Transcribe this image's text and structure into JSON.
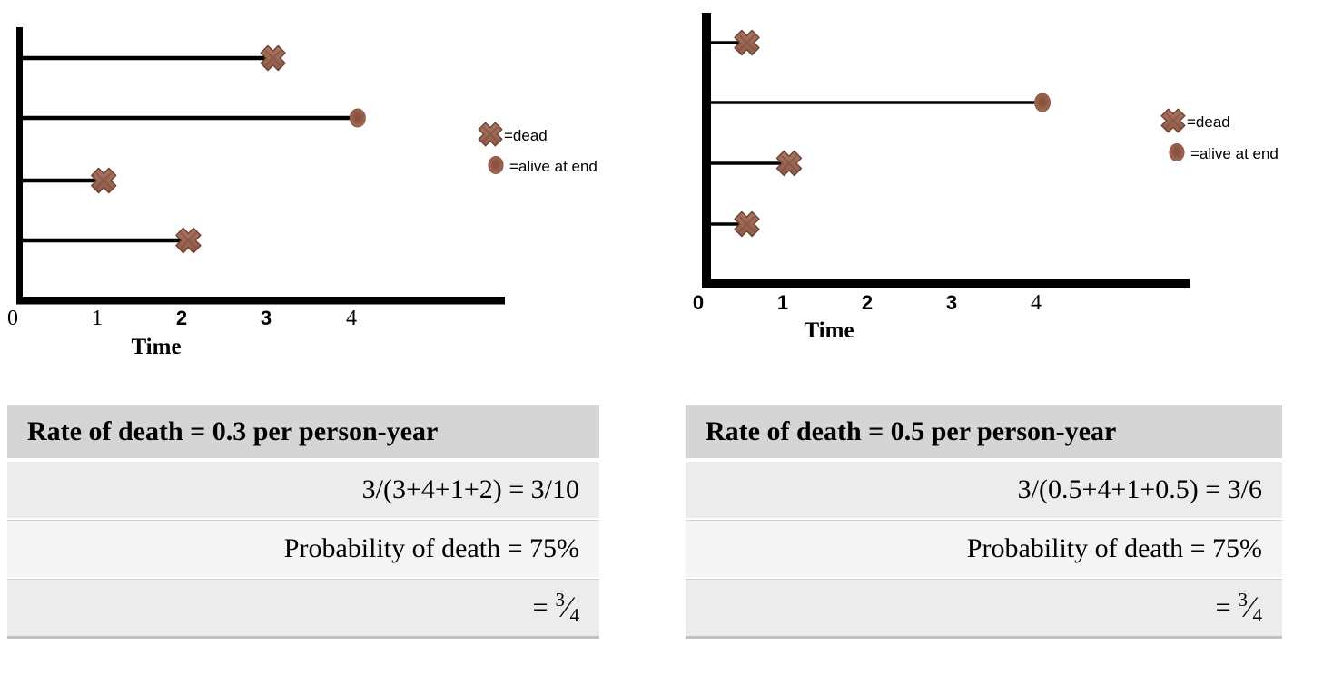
{
  "chart_data": [
    {
      "type": "scatter",
      "title": "",
      "xlabel": "Time",
      "ylabel": "",
      "x_ticks": [
        "0",
        "1",
        "2",
        "3",
        "4"
      ],
      "xlim": [
        0,
        5
      ],
      "grid": false,
      "subjects": [
        {
          "row": 1,
          "time": 3,
          "outcome": "dead"
        },
        {
          "row": 2,
          "time": 4,
          "outcome": "alive at end"
        },
        {
          "row": 3,
          "time": 1,
          "outcome": "dead"
        },
        {
          "row": 4,
          "time": 2,
          "outcome": "dead"
        }
      ],
      "legend": [
        {
          "marker": "cross",
          "label": "=dead"
        },
        {
          "marker": "circle",
          "label": "=alive at end"
        }
      ]
    },
    {
      "type": "scatter",
      "title": "",
      "xlabel": "Time",
      "ylabel": "",
      "x_ticks": [
        "0",
        "1",
        "2",
        "3",
        "4"
      ],
      "xlim": [
        0,
        5
      ],
      "grid": false,
      "subjects": [
        {
          "row": 1,
          "time": 0.5,
          "outcome": "dead"
        },
        {
          "row": 2,
          "time": 4,
          "outcome": "alive at end"
        },
        {
          "row": 3,
          "time": 1,
          "outcome": "dead"
        },
        {
          "row": 4,
          "time": 0.5,
          "outcome": "dead"
        }
      ],
      "legend": [
        {
          "marker": "cross",
          "label": "=dead"
        },
        {
          "marker": "circle",
          "label": "=alive at end"
        }
      ]
    }
  ],
  "tables": [
    {
      "header": "Rate of death = 0.3 per person-year",
      "rows": [
        "3/(3+4+1+2) = 3/10",
        "Probability of death = 75%"
      ],
      "fraction_row": {
        "equals": "=",
        "numerator": "3",
        "slash": "⁄",
        "denominator": "4"
      }
    },
    {
      "header": "Rate of death = 0.5 per person-year",
      "rows": [
        "3/(0.5+4+1+0.5) = 3/6",
        "Probability of death = 75%"
      ],
      "fraction_row": {
        "equals": "=",
        "numerator": "3",
        "slash": "⁄",
        "denominator": "4"
      }
    }
  ],
  "colors": {
    "marker_fill": "#9c6753",
    "marker_fill_light": "#b07c66",
    "marker_stroke": "#6e4233",
    "axis": "#000000",
    "table_header_bg": "#d5d5d5",
    "table_row_bg_a": "#ececec",
    "table_row_bg_b": "#f5f5f5"
  }
}
